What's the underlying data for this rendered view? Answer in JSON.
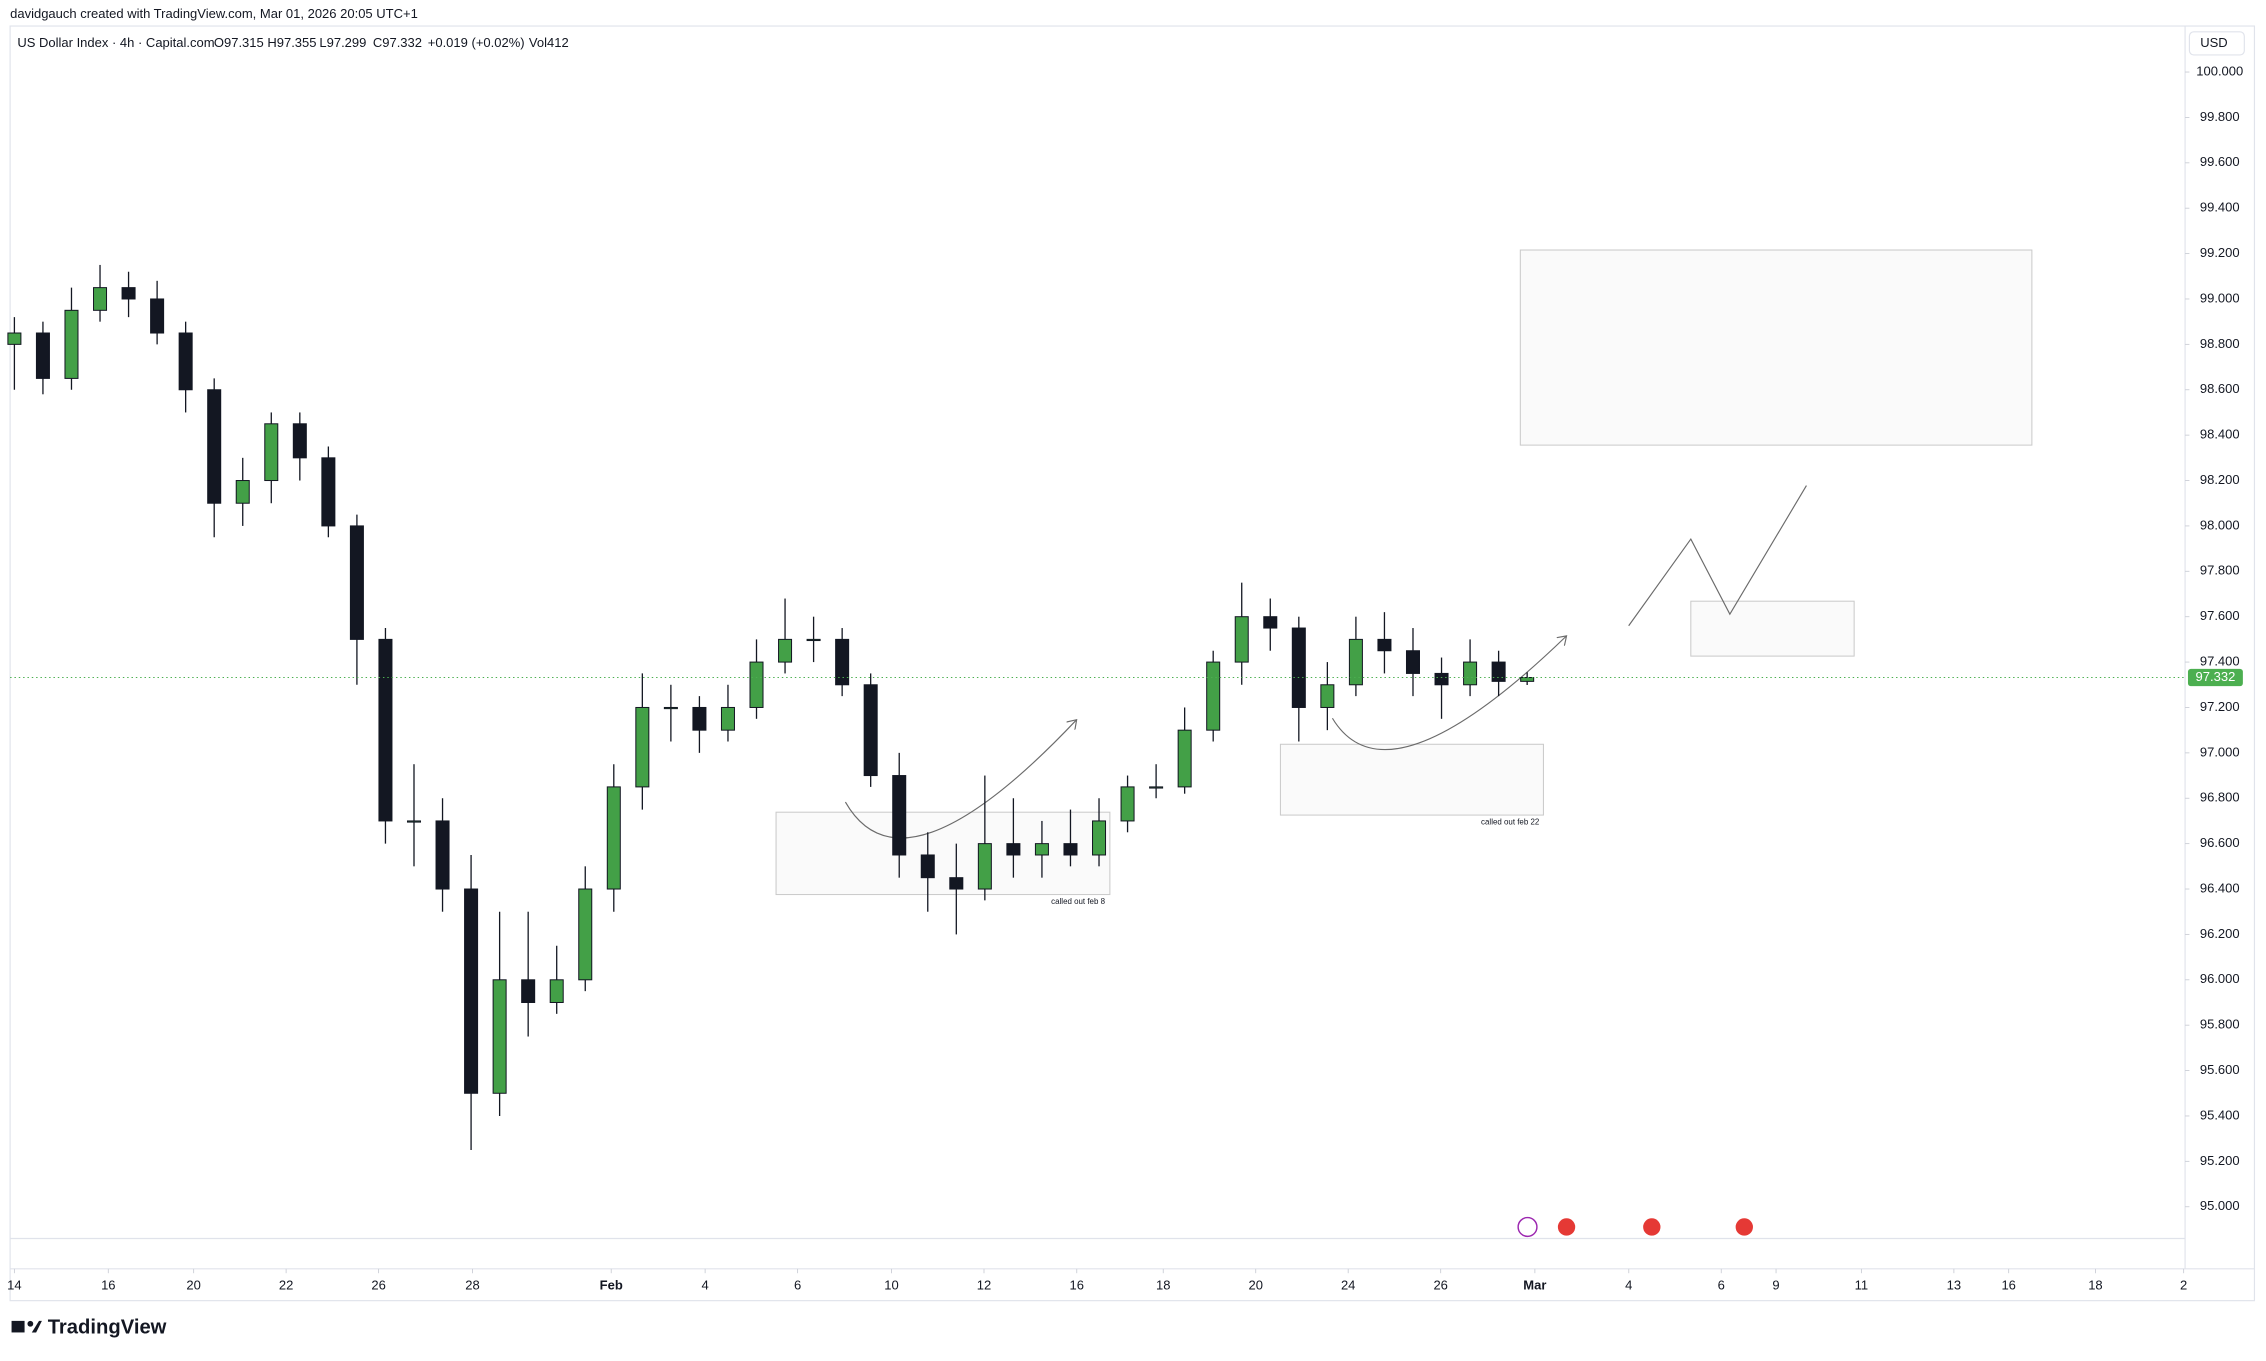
{
  "page": {
    "caption": "davidgauch created with TradingView.com, Mar 01, 2026 20:05 UTC+1",
    "brand": "TradingView",
    "header": {
      "symbol": "US Dollar Index · 4h · Capital.com",
      "open": "O97.315",
      "high": "H97.355",
      "low": "L97.299",
      "close": "C97.332",
      "change": "+0.019 (+0.02%)",
      "volume": "Vol412"
    },
    "currency": "USD",
    "annotations": [
      "called out feb 8",
      "called out feb 22"
    ]
  },
  "chart_data": {
    "type": "candlestick",
    "up_color": "#43a047",
    "down_color": "#131722",
    "open": [
      98.8,
      98.85,
      98.65,
      98.95,
      99.05,
      99.0,
      98.85,
      98.6,
      98.1,
      98.2,
      98.45,
      98.3,
      98.0,
      97.5,
      96.7,
      96.7,
      96.4,
      95.5,
      96.0,
      95.9,
      96.0,
      96.4,
      96.85,
      97.2,
      97.2,
      97.1,
      97.2,
      97.4,
      97.5,
      97.5,
      97.3,
      96.9,
      96.55,
      96.45,
      96.4,
      96.6,
      96.55,
      96.6,
      96.55,
      96.7,
      96.85,
      96.85,
      97.1,
      97.4,
      97.6,
      97.55,
      97.2,
      97.3,
      97.5,
      97.45,
      97.35,
      97.3,
      97.4,
      97.315
    ],
    "high": [
      98.92,
      98.9,
      99.05,
      99.15,
      99.12,
      99.08,
      98.9,
      98.65,
      98.3,
      98.5,
      98.5,
      98.35,
      98.05,
      97.55,
      96.95,
      96.8,
      96.55,
      96.3,
      96.3,
      96.15,
      96.5,
      96.95,
      97.35,
      97.3,
      97.25,
      97.3,
      97.5,
      97.68,
      97.6,
      97.55,
      97.35,
      97.0,
      96.65,
      96.6,
      96.9,
      96.8,
      96.7,
      96.75,
      96.8,
      96.9,
      96.95,
      97.2,
      97.45,
      97.75,
      97.68,
      97.6,
      97.4,
      97.6,
      97.62,
      97.55,
      97.42,
      97.5,
      97.45,
      97.355
    ],
    "low": [
      98.6,
      98.58,
      98.6,
      98.9,
      98.92,
      98.8,
      98.5,
      97.95,
      98.0,
      98.1,
      98.2,
      97.95,
      97.3,
      96.6,
      96.5,
      96.3,
      95.25,
      95.4,
      95.75,
      95.85,
      95.95,
      96.3,
      96.75,
      97.05,
      97.0,
      97.05,
      97.15,
      97.35,
      97.4,
      97.25,
      96.85,
      96.45,
      96.3,
      96.2,
      96.35,
      96.45,
      96.45,
      96.5,
      96.5,
      96.65,
      96.8,
      96.82,
      97.05,
      97.3,
      97.45,
      97.05,
      97.1,
      97.25,
      97.35,
      97.25,
      97.15,
      97.25,
      97.25,
      97.299
    ],
    "close": [
      98.85,
      98.65,
      98.95,
      99.05,
      99.0,
      98.85,
      98.6,
      98.1,
      98.2,
      98.45,
      98.3,
      98.0,
      97.5,
      96.7,
      96.7,
      96.4,
      95.5,
      96.0,
      95.9,
      96.0,
      96.4,
      96.85,
      97.2,
      97.2,
      97.1,
      97.2,
      97.4,
      97.5,
      97.5,
      97.3,
      96.9,
      96.55,
      96.45,
      96.4,
      96.6,
      96.55,
      96.6,
      96.55,
      96.7,
      96.85,
      96.85,
      97.1,
      97.4,
      97.6,
      97.55,
      97.2,
      97.3,
      97.5,
      97.45,
      97.35,
      97.3,
      97.4,
      97.315,
      97.332
    ],
    "last_price": {
      "value": 97.332,
      "label": "97.332",
      "color": "#4caf50"
    },
    "xlim": [
      -0.15,
      76.05
    ],
    "xticks": [
      {
        "value": 0,
        "label": "14"
      },
      {
        "value": 3.29,
        "label": "16"
      },
      {
        "value": 6.28,
        "label": "20"
      },
      {
        "value": 9.52,
        "label": "22"
      },
      {
        "value": 12.76,
        "label": "26"
      },
      {
        "value": 16.05,
        "label": "28"
      },
      {
        "value": 20.91,
        "label": "Feb"
      },
      {
        "value": 24.2,
        "label": "4"
      },
      {
        "value": 27.44,
        "label": "6"
      },
      {
        "value": 30.73,
        "label": "10"
      },
      {
        "value": 33.97,
        "label": "12"
      },
      {
        "value": 37.22,
        "label": "16"
      },
      {
        "value": 40.25,
        "label": "18"
      },
      {
        "value": 43.49,
        "label": "20"
      },
      {
        "value": 46.73,
        "label": "24"
      },
      {
        "value": 49.97,
        "label": "26"
      },
      {
        "value": 53.27,
        "label": "Mar"
      },
      {
        "value": 56.56,
        "label": "4"
      },
      {
        "value": 59.8,
        "label": "6"
      },
      {
        "value": 61.72,
        "label": "9"
      },
      {
        "value": 64.71,
        "label": "11"
      },
      {
        "value": 67.95,
        "label": "13"
      },
      {
        "value": 69.87,
        "label": "16"
      },
      {
        "value": 72.91,
        "label": "18"
      },
      {
        "value": 76.0,
        "label": "2"
      }
    ],
    "ylim": [
      94.86,
      100.19
    ],
    "yticks": [
      {
        "value": 95,
        "label": "95.000"
      },
      {
        "value": 95.2,
        "label": "95.200"
      },
      {
        "value": 95.4,
        "label": "95.400"
      },
      {
        "value": 95.6,
        "label": "95.600"
      },
      {
        "value": 95.8,
        "label": "95.800"
      },
      {
        "value": 96,
        "label": "96.000"
      },
      {
        "value": 96.2,
        "label": "96.200"
      },
      {
        "value": 96.4,
        "label": "96.400"
      },
      {
        "value": 96.6,
        "label": "96.600"
      },
      {
        "value": 96.8,
        "label": "96.800"
      },
      {
        "value": 97,
        "label": "97.000"
      },
      {
        "value": 97.2,
        "label": "97.200"
      },
      {
        "value": 97.4,
        "label": "97.400"
      },
      {
        "value": 97.6,
        "label": "97.600"
      },
      {
        "value": 97.8,
        "label": "97.800"
      },
      {
        "value": 98,
        "label": "98.000"
      },
      {
        "value": 98.2,
        "label": "98.200"
      },
      {
        "value": 98.4,
        "label": "98.400"
      },
      {
        "value": 98.6,
        "label": "98.600"
      },
      {
        "value": 98.8,
        "label": "98.800"
      },
      {
        "value": 99,
        "label": "99.000"
      },
      {
        "value": 99.2,
        "label": "99.200"
      },
      {
        "value": 99.4,
        "label": "99.400"
      },
      {
        "value": 99.6,
        "label": "99.600"
      },
      {
        "value": 99.8,
        "label": "99.800"
      },
      {
        "value": 100,
        "label": "100.000"
      }
    ]
  }
}
